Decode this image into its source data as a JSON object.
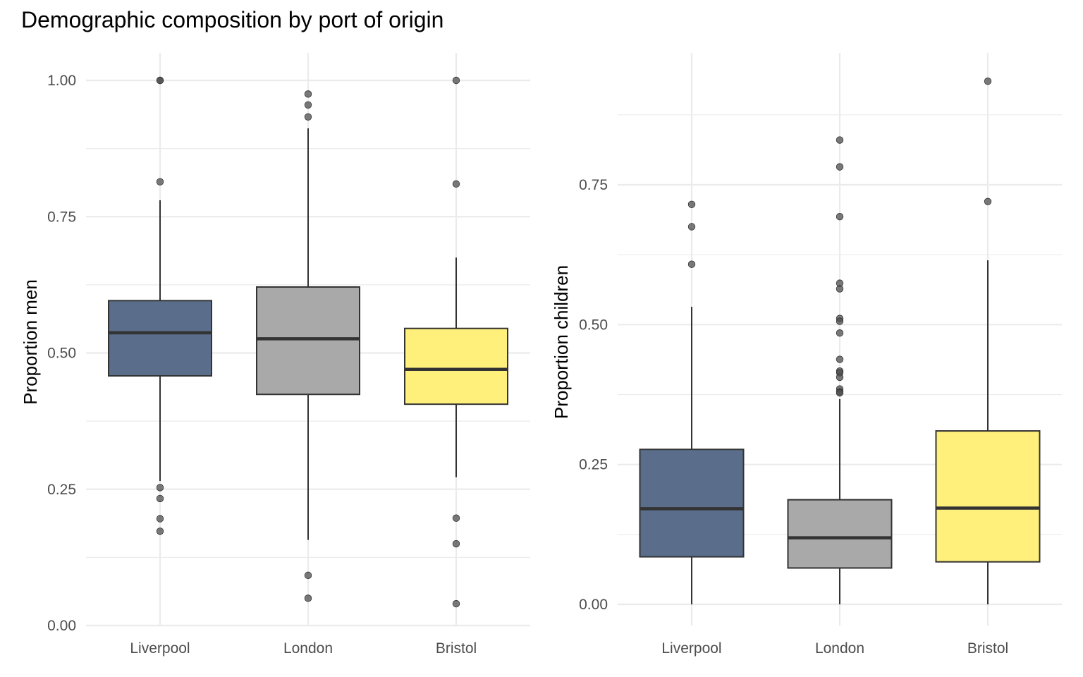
{
  "title": "Demographic composition by port of origin",
  "colors": {
    "Liverpool": "#5a6e8c",
    "London": "#a9a9a9",
    "Bristol": "#fff07c",
    "grid": "#ebebeb",
    "box_border": "#333333",
    "outlier": "#4d4d4d"
  },
  "chart_data": [
    {
      "type": "boxplot",
      "ylabel": "Proportion men",
      "xlabel": "",
      "categories": [
        "Liverpool",
        "London",
        "Bristol"
      ],
      "ylim": [
        0,
        1.05
      ],
      "yticks": [
        0,
        0.25,
        0.5,
        0.75,
        1.0
      ],
      "ytick_labels": [
        "0.00",
        "0.25",
        "0.50",
        "0.75",
        "1.00"
      ],
      "grid": true,
      "boxes": [
        {
          "category": "Liverpool",
          "whisker_low": 0.265,
          "q1": 0.458,
          "median": 0.537,
          "q3": 0.596,
          "whisker_high": 0.78,
          "outliers": [
            1.0,
            1.0,
            0.814,
            0.253,
            0.233,
            0.196,
            0.173
          ]
        },
        {
          "category": "London",
          "whisker_low": 0.157,
          "q1": 0.424,
          "median": 0.526,
          "q3": 0.621,
          "whisker_high": 0.912,
          "outliers": [
            0.975,
            0.955,
            0.933,
            0.092,
            0.05
          ]
        },
        {
          "category": "Bristol",
          "whisker_low": 0.272,
          "q1": 0.406,
          "median": 0.47,
          "q3": 0.545,
          "whisker_high": 0.675,
          "outliers": [
            1.0,
            0.81,
            0.197,
            0.15,
            0.04
          ]
        }
      ]
    },
    {
      "type": "boxplot",
      "ylabel": "Proportion children",
      "xlabel": "",
      "categories": [
        "Liverpool",
        "London",
        "Bristol"
      ],
      "ylim": [
        0,
        0.95
      ],
      "yticks": [
        0,
        0.25,
        0.5,
        0.75
      ],
      "ytick_labels": [
        "0.00",
        "0.25",
        "0.50",
        "0.75"
      ],
      "grid": true,
      "boxes": [
        {
          "category": "Liverpool",
          "whisker_low": 0.0,
          "q1": 0.085,
          "median": 0.171,
          "q3": 0.277,
          "whisker_high": 0.532,
          "outliers": [
            0.715,
            0.675,
            0.608
          ]
        },
        {
          "category": "London",
          "whisker_low": 0.0,
          "q1": 0.065,
          "median": 0.119,
          "q3": 0.187,
          "whisker_high": 0.367,
          "outliers": [
            0.83,
            0.782,
            0.693,
            0.574,
            0.564,
            0.511,
            0.506,
            0.485,
            0.438,
            0.417,
            0.414,
            0.406,
            0.385,
            0.38,
            0.378
          ]
        },
        {
          "category": "Bristol",
          "whisker_low": 0.0,
          "q1": 0.076,
          "median": 0.172,
          "q3": 0.31,
          "whisker_high": 0.615,
          "outliers": [
            0.935,
            0.72
          ]
        }
      ]
    }
  ]
}
